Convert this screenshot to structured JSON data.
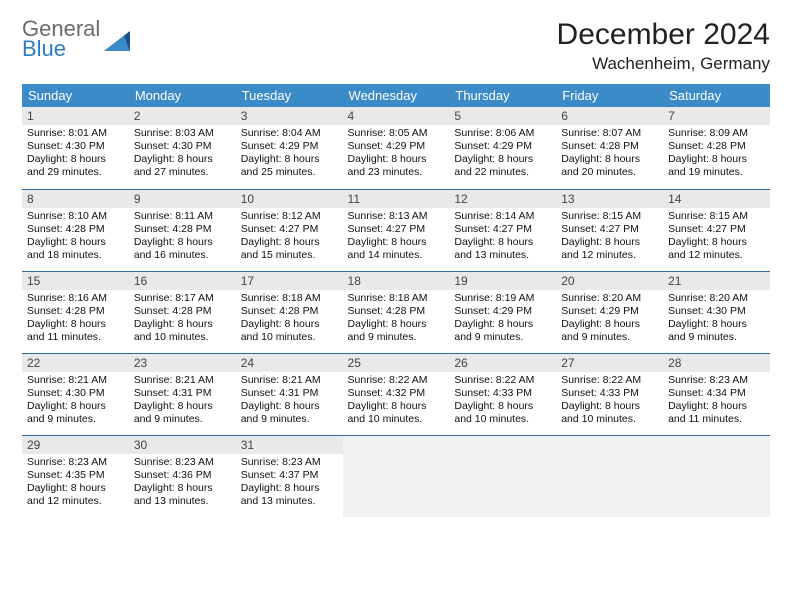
{
  "logo": {
    "word1": "General",
    "word2": "Blue"
  },
  "title": "December 2024",
  "location": "Wachenheim, Germany",
  "style": {
    "header_bg": "#3b8bc9",
    "header_text": "#ffffff",
    "daynum_bg": "#e9e9e9",
    "rule_color": "#2f6a9a",
    "empty_bg": "#f2f2f2",
    "logo_gray": "#6b6b6b",
    "logo_blue": "#2f7ec2",
    "month_fontsize": 30,
    "location_fontsize": 17,
    "header_fontsize": 13,
    "daynum_fontsize": 12,
    "info_fontsize": 10.5
  },
  "weekdays": [
    "Sunday",
    "Monday",
    "Tuesday",
    "Wednesday",
    "Thursday",
    "Friday",
    "Saturday"
  ],
  "days": [
    {
      "n": "1",
      "sunrise": "8:01 AM",
      "sunset": "4:30 PM",
      "daylight": "8 hours and 29 minutes."
    },
    {
      "n": "2",
      "sunrise": "8:03 AM",
      "sunset": "4:30 PM",
      "daylight": "8 hours and 27 minutes."
    },
    {
      "n": "3",
      "sunrise": "8:04 AM",
      "sunset": "4:29 PM",
      "daylight": "8 hours and 25 minutes."
    },
    {
      "n": "4",
      "sunrise": "8:05 AM",
      "sunset": "4:29 PM",
      "daylight": "8 hours and 23 minutes."
    },
    {
      "n": "5",
      "sunrise": "8:06 AM",
      "sunset": "4:29 PM",
      "daylight": "8 hours and 22 minutes."
    },
    {
      "n": "6",
      "sunrise": "8:07 AM",
      "sunset": "4:28 PM",
      "daylight": "8 hours and 20 minutes."
    },
    {
      "n": "7",
      "sunrise": "8:09 AM",
      "sunset": "4:28 PM",
      "daylight": "8 hours and 19 minutes."
    },
    {
      "n": "8",
      "sunrise": "8:10 AM",
      "sunset": "4:28 PM",
      "daylight": "8 hours and 18 minutes."
    },
    {
      "n": "9",
      "sunrise": "8:11 AM",
      "sunset": "4:28 PM",
      "daylight": "8 hours and 16 minutes."
    },
    {
      "n": "10",
      "sunrise": "8:12 AM",
      "sunset": "4:27 PM",
      "daylight": "8 hours and 15 minutes."
    },
    {
      "n": "11",
      "sunrise": "8:13 AM",
      "sunset": "4:27 PM",
      "daylight": "8 hours and 14 minutes."
    },
    {
      "n": "12",
      "sunrise": "8:14 AM",
      "sunset": "4:27 PM",
      "daylight": "8 hours and 13 minutes."
    },
    {
      "n": "13",
      "sunrise": "8:15 AM",
      "sunset": "4:27 PM",
      "daylight": "8 hours and 12 minutes."
    },
    {
      "n": "14",
      "sunrise": "8:15 AM",
      "sunset": "4:27 PM",
      "daylight": "8 hours and 12 minutes."
    },
    {
      "n": "15",
      "sunrise": "8:16 AM",
      "sunset": "4:28 PM",
      "daylight": "8 hours and 11 minutes."
    },
    {
      "n": "16",
      "sunrise": "8:17 AM",
      "sunset": "4:28 PM",
      "daylight": "8 hours and 10 minutes."
    },
    {
      "n": "17",
      "sunrise": "8:18 AM",
      "sunset": "4:28 PM",
      "daylight": "8 hours and 10 minutes."
    },
    {
      "n": "18",
      "sunrise": "8:18 AM",
      "sunset": "4:28 PM",
      "daylight": "8 hours and 9 minutes."
    },
    {
      "n": "19",
      "sunrise": "8:19 AM",
      "sunset": "4:29 PM",
      "daylight": "8 hours and 9 minutes."
    },
    {
      "n": "20",
      "sunrise": "8:20 AM",
      "sunset": "4:29 PM",
      "daylight": "8 hours and 9 minutes."
    },
    {
      "n": "21",
      "sunrise": "8:20 AM",
      "sunset": "4:30 PM",
      "daylight": "8 hours and 9 minutes."
    },
    {
      "n": "22",
      "sunrise": "8:21 AM",
      "sunset": "4:30 PM",
      "daylight": "8 hours and 9 minutes."
    },
    {
      "n": "23",
      "sunrise": "8:21 AM",
      "sunset": "4:31 PM",
      "daylight": "8 hours and 9 minutes."
    },
    {
      "n": "24",
      "sunrise": "8:21 AM",
      "sunset": "4:31 PM",
      "daylight": "8 hours and 9 minutes."
    },
    {
      "n": "25",
      "sunrise": "8:22 AM",
      "sunset": "4:32 PM",
      "daylight": "8 hours and 10 minutes."
    },
    {
      "n": "26",
      "sunrise": "8:22 AM",
      "sunset": "4:33 PM",
      "daylight": "8 hours and 10 minutes."
    },
    {
      "n": "27",
      "sunrise": "8:22 AM",
      "sunset": "4:33 PM",
      "daylight": "8 hours and 10 minutes."
    },
    {
      "n": "28",
      "sunrise": "8:23 AM",
      "sunset": "4:34 PM",
      "daylight": "8 hours and 11 minutes."
    },
    {
      "n": "29",
      "sunrise": "8:23 AM",
      "sunset": "4:35 PM",
      "daylight": "8 hours and 12 minutes."
    },
    {
      "n": "30",
      "sunrise": "8:23 AM",
      "sunset": "4:36 PM",
      "daylight": "8 hours and 13 minutes."
    },
    {
      "n": "31",
      "sunrise": "8:23 AM",
      "sunset": "4:37 PM",
      "daylight": "8 hours and 13 minutes."
    }
  ],
  "labels": {
    "sunrise": "Sunrise: ",
    "sunset": "Sunset: ",
    "daylight": "Daylight: "
  }
}
